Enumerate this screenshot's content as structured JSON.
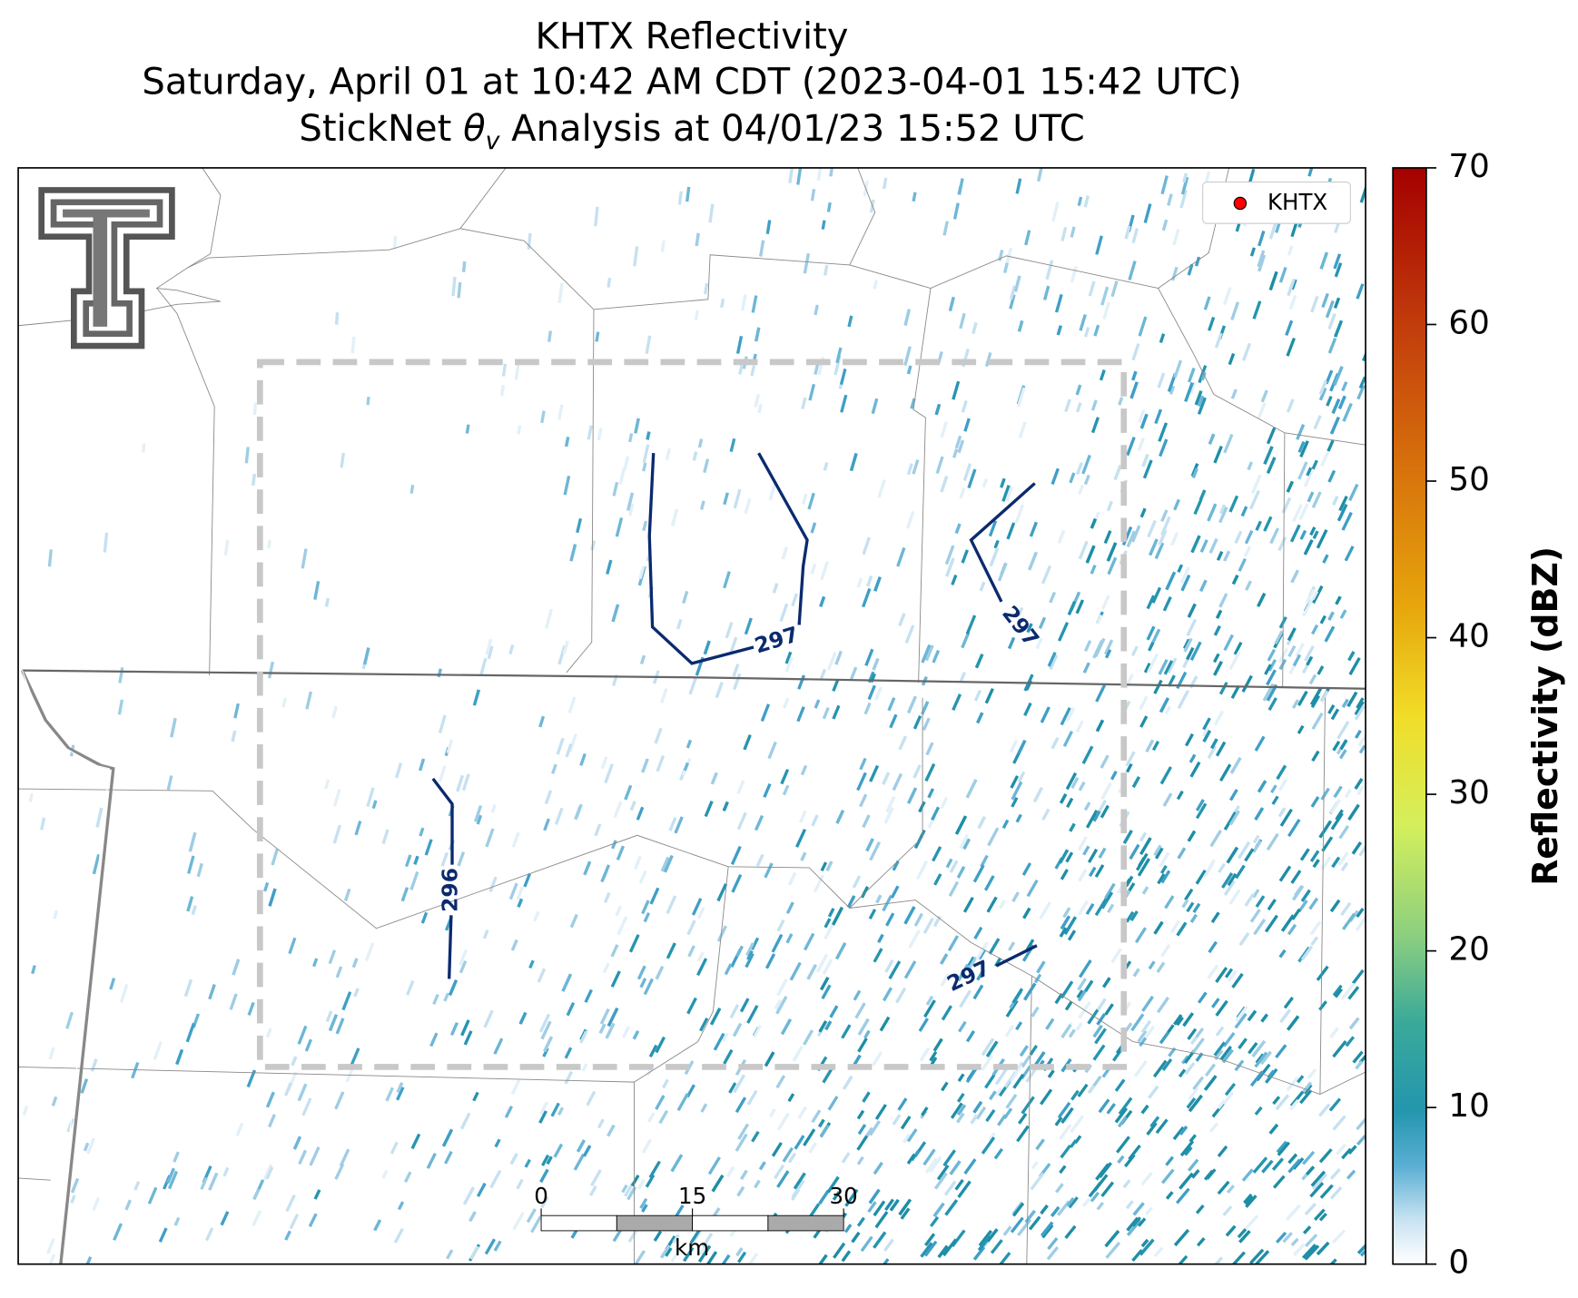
{
  "title": {
    "line1": "KHTX Reflectivity",
    "line2": "Saturday, April 01 at 10:42 AM CDT (2023-04-01 15:42 UTC)",
    "line3": {
      "prefix": "StickNet",
      "symbol": "θ",
      "subscript": "v",
      "suffix": "Analysis at 04/01/23 15:52 UTC"
    }
  },
  "legend": {
    "label": "KHTX",
    "color": "#ff0000"
  },
  "contour_labels": [
    297,
    297,
    296,
    297
  ],
  "colorbar": {
    "label": "Reflectivity (dBZ)",
    "lim": [
      0,
      70
    ],
    "ticks": [
      0,
      10,
      20,
      30,
      40,
      50,
      60,
      70
    ]
  },
  "scalebar": {
    "unit": "km",
    "lim": [
      0,
      30
    ],
    "ticks": [
      0,
      15,
      30
    ]
  }
}
